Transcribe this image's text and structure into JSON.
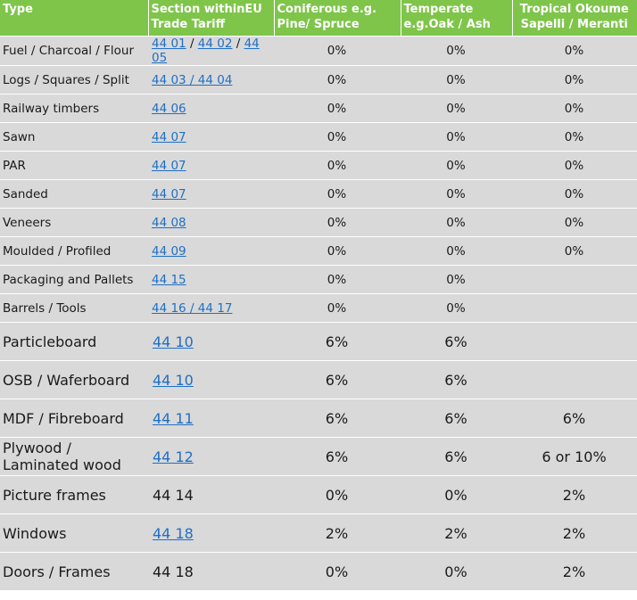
{
  "headers": {
    "type": "Type",
    "section": "Section withinEU Trade Tariff",
    "coniferous": "Coniferous e.g. Pine/ Spruce",
    "temperate": "Temperate e.g.Oak / Ash",
    "tropical": "Tropical Okoume Sapelli / Meranti"
  },
  "rows": [
    {
      "type": "Fuel / Charcoal / Flour",
      "codes": [
        "44 01",
        "44 02",
        "44 05"
      ],
      "linked": true,
      "coniferous": "0%",
      "temperate": "0%",
      "tropical": "0%"
    },
    {
      "type": "Logs / Squares / Split",
      "codes": [
        "44 03 / 44 04"
      ],
      "linked": true,
      "coniferous": "0%",
      "temperate": "0%",
      "tropical": "0%"
    },
    {
      "type": "Railway timbers",
      "codes": [
        "44 06"
      ],
      "linked": true,
      "coniferous": "0%",
      "temperate": "0%",
      "tropical": "0%"
    },
    {
      "type": "Sawn",
      "codes": [
        "44 07"
      ],
      "linked": true,
      "coniferous": "0%",
      "temperate": "0%",
      "tropical": "0%"
    },
    {
      "type": "PAR",
      "codes": [
        "44 07"
      ],
      "linked": true,
      "coniferous": "0%",
      "temperate": "0%",
      "tropical": "0%"
    },
    {
      "type": "Sanded",
      "codes": [
        "44 07"
      ],
      "linked": true,
      "coniferous": "0%",
      "temperate": "0%",
      "tropical": "0%"
    },
    {
      "type": "Veneers",
      "codes": [
        "44 08"
      ],
      "linked": true,
      "coniferous": "0%",
      "temperate": "0%",
      "tropical": "0%"
    },
    {
      "type": "Moulded / Profiled",
      "codes": [
        "44 09"
      ],
      "linked": true,
      "coniferous": "0%",
      "temperate": "0%",
      "tropical": "0%"
    },
    {
      "type": "Packaging and Pallets",
      "codes": [
        "44 15"
      ],
      "linked": true,
      "coniferous": "0%",
      "temperate": "0%",
      "tropical": ""
    },
    {
      "type": "Barrels / Tools",
      "codes": [
        "44 16 / 44 17"
      ],
      "linked": true,
      "coniferous": "0%",
      "temperate": "0%",
      "tropical": ""
    },
    {
      "type": "Particleboard",
      "codes": [
        "44 10"
      ],
      "linked": true,
      "coniferous": "6%",
      "temperate": "6%",
      "tropical": ""
    },
    {
      "type": "OSB / Waferboard",
      "codes": [
        "44 10"
      ],
      "linked": true,
      "coniferous": "6%",
      "temperate": "6%",
      "tropical": ""
    },
    {
      "type": "MDF / Fibreboard",
      "codes": [
        "44 11"
      ],
      "linked": true,
      "coniferous": "6%",
      "temperate": "6%",
      "tropical": "6%"
    },
    {
      "type": "Plywood / Laminated wood",
      "codes": [
        "44 12"
      ],
      "linked": true,
      "coniferous": "6%",
      "temperate": "6%",
      "tropical": "6 or 10%"
    },
    {
      "type": "Picture frames",
      "codes": [
        "44 14"
      ],
      "linked": false,
      "coniferous": "0%",
      "temperate": "0%",
      "tropical": "2%"
    },
    {
      "type": "Windows",
      "codes": [
        "44 18"
      ],
      "linked": true,
      "coniferous": "2%",
      "temperate": "2%",
      "tropical": "2%"
    },
    {
      "type": "Doors / Frames",
      "codes": [
        "44 18"
      ],
      "linked": false,
      "coniferous": "0%",
      "temperate": "0%",
      "tropical": "2%"
    }
  ],
  "colors": {
    "header_bg": "#7ec54a",
    "row_bg": "#d9d9d9",
    "link": "#1f6fc5"
  }
}
